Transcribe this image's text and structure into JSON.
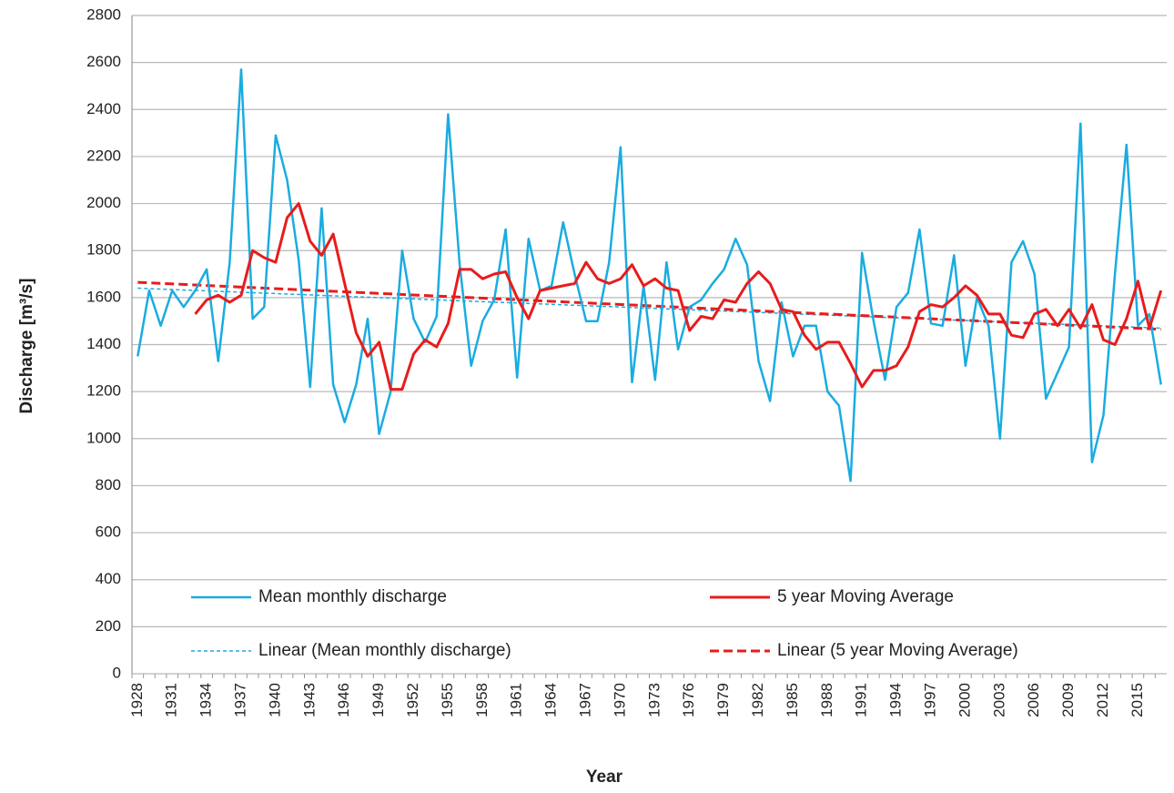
{
  "chart_data": {
    "type": "line",
    "y_label": "Discharge [m³/s]",
    "x_label": "Year",
    "categories": [
      "1928",
      null,
      null,
      "1931",
      null,
      null,
      "1934",
      null,
      null,
      "1937",
      null,
      null,
      "1940",
      null,
      null,
      "1943",
      null,
      null,
      "1946",
      null,
      null,
      "1949",
      null,
      null,
      "1952",
      null,
      null,
      "1955",
      null,
      null,
      "1958",
      null,
      null,
      "1961",
      null,
      null,
      "1964",
      null,
      null,
      "1967",
      null,
      null,
      "1970",
      null,
      null,
      "1973",
      null,
      null,
      "1976",
      null,
      null,
      "1979",
      null,
      null,
      "1982",
      null,
      null,
      "1985",
      null,
      null,
      "1988",
      null,
      null,
      "1991",
      null,
      null,
      "1994",
      null,
      null,
      "1997",
      null,
      null,
      "2000",
      null,
      null,
      "2003",
      null,
      null,
      "2006",
      null,
      null,
      "2009",
      null,
      null,
      "2012",
      null,
      null,
      "2015",
      null,
      null
    ],
    "series": [
      {
        "name": "Mean monthly discharge",
        "color": "#1aace0",
        "width": 2.5,
        "dash": false,
        "values": [
          1350,
          1630,
          1480,
          1630,
          1560,
          1630,
          1720,
          1330,
          1750,
          2570,
          1510,
          1560,
          2290,
          2100,
          1760,
          1220,
          1980,
          1230,
          1070,
          1230,
          1510,
          1020,
          1200,
          1800,
          1510,
          1410,
          1520,
          2380,
          1740,
          1310,
          1500,
          1590,
          1890,
          1260,
          1850,
          1630,
          1650,
          1920,
          1700,
          1500,
          1500,
          1750,
          2240,
          1240,
          1650,
          1250,
          1750,
          1380,
          1560,
          1590,
          1660,
          1720,
          1850,
          1740,
          1330,
          1160,
          1580,
          1350,
          1480,
          1480,
          1200,
          1140,
          820,
          1790,
          1500,
          1250,
          1560,
          1620,
          1890,
          1490,
          1480,
          1780,
          1310,
          1600,
          1480,
          1000,
          1750,
          1840,
          1700,
          1170,
          1280,
          1390,
          2340,
          900,
          1100,
          1700,
          2250,
          1480,
          1530,
          1230
        ]
      },
      {
        "name": "5 year Moving Average",
        "color": "#e81c1c",
        "width": 3,
        "dash": false,
        "values": [
          null,
          null,
          null,
          null,
          null,
          1530,
          1590,
          1610,
          1580,
          1610,
          1800,
          1770,
          1750,
          1940,
          2000,
          1840,
          1780,
          1870,
          1660,
          1450,
          1350,
          1410,
          1210,
          1210,
          1360,
          1420,
          1390,
          1490,
          1720,
          1720,
          1680,
          1700,
          1710,
          1600,
          1510,
          1630,
          1640,
          1650,
          1660,
          1750,
          1680,
          1660,
          1680,
          1740,
          1650,
          1680,
          1640,
          1630,
          1460,
          1520,
          1510,
          1590,
          1580,
          1660,
          1710,
          1660,
          1550,
          1540,
          1440,
          1380,
          1410,
          1410,
          1320,
          1220,
          1290,
          1290,
          1310,
          1390,
          1540,
          1570,
          1560,
          1600,
          1650,
          1610,
          1530,
          1530,
          1440,
          1430,
          1530,
          1550,
          1480,
          1550,
          1470,
          1570,
          1420,
          1400,
          1510,
          1670,
          1470,
          1630
        ]
      }
    ],
    "trendlines": [
      {
        "name": "Linear (Mean monthly discharge)",
        "color": "#1aace0",
        "start": 1640,
        "end": 1470
      },
      {
        "name": "Linear (5 year Moving Average)",
        "color": "#e81c1c",
        "start": 1665,
        "end": 1465
      }
    ],
    "ylim": [
      0,
      2800
    ],
    "yticks": [
      0,
      200,
      400,
      600,
      800,
      1000,
      1200,
      1400,
      1600,
      1800,
      2000,
      2200,
      2400,
      2600,
      2800
    ],
    "grid": true
  }
}
